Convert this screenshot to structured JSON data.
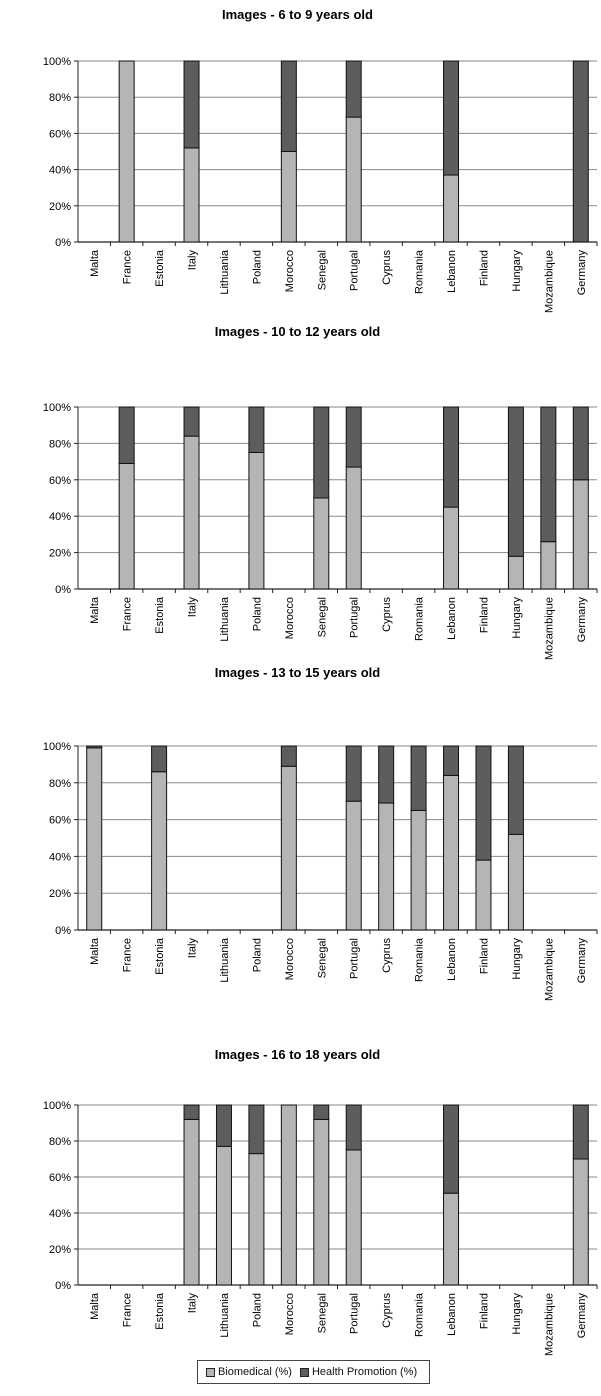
{
  "legend": {
    "items": [
      {
        "label": "Biomedical (%)",
        "color": "#b5b5b5"
      },
      {
        "label": "Health Promotion (%)",
        "color": "#5d5d5d"
      }
    ]
  },
  "chart_data": [
    {
      "type": "bar",
      "stacked": true,
      "title": "Images - 6 to 9 years old",
      "categories": [
        "Malta",
        "France",
        "Estonia",
        "Italy",
        "Lithuania",
        "Poland",
        "Morocco",
        "Senegal",
        "Portugal",
        "Cyprus",
        "Romania",
        "Lebanon",
        "Finland",
        "Hungary",
        "Mozambique",
        "Germany"
      ],
      "y_ticks": [
        "0%",
        "20%",
        "40%",
        "60%",
        "80%",
        "100%"
      ],
      "ylim": [
        0,
        100
      ],
      "grid": true,
      "series": [
        {
          "name": "Biomedical (%)",
          "values": [
            0,
            100,
            0,
            52,
            0,
            0,
            50,
            0,
            69,
            0,
            0,
            37,
            0,
            0,
            0,
            0
          ]
        },
        {
          "name": "Health Promotion (%)",
          "values": [
            0,
            0,
            0,
            48,
            0,
            0,
            50,
            0,
            31,
            0,
            0,
            63,
            0,
            0,
            0,
            100
          ]
        }
      ]
    },
    {
      "type": "bar",
      "stacked": true,
      "title": "Images - 10 to 12 years old",
      "categories": [
        "Malta",
        "France",
        "Estonia",
        "Italy",
        "Lithuania",
        "Poland",
        "Morocco",
        "Senegal",
        "Portugal",
        "Cyprus",
        "Romania",
        "Lebanon",
        "Finland",
        "Hungary",
        "Mozambique",
        "Germany"
      ],
      "y_ticks": [
        "0%",
        "20%",
        "40%",
        "60%",
        "80%",
        "100%"
      ],
      "ylim": [
        0,
        100
      ],
      "grid": true,
      "series": [
        {
          "name": "Biomedical (%)",
          "values": [
            0,
            69,
            0,
            84,
            0,
            75,
            0,
            50,
            67,
            0,
            0,
            45,
            0,
            18,
            26,
            60
          ]
        },
        {
          "name": "Health Promotion (%)",
          "values": [
            0,
            31,
            0,
            16,
            0,
            25,
            0,
            50,
            33,
            0,
            0,
            55,
            0,
            82,
            74,
            40
          ]
        }
      ]
    },
    {
      "type": "bar",
      "stacked": true,
      "title": "Images - 13 to 15 years old",
      "categories": [
        "Malta",
        "France",
        "Estonia",
        "Italy",
        "Lithuania",
        "Poland",
        "Morocco",
        "Senegal",
        "Portugal",
        "Cyprus",
        "Romania",
        "Lebanon",
        "Finland",
        "Hungary",
        "Mozambique",
        "Germany"
      ],
      "y_ticks": [
        "0%",
        "20%",
        "40%",
        "60%",
        "80%",
        "100%"
      ],
      "ylim": [
        0,
        100
      ],
      "grid": true,
      "series": [
        {
          "name": "Biomedical (%)",
          "values": [
            99,
            0,
            86,
            0,
            0,
            0,
            89,
            0,
            70,
            69,
            65,
            84,
            38,
            52,
            0,
            0
          ]
        },
        {
          "name": "Health Promotion (%)",
          "values": [
            1,
            0,
            14,
            0,
            0,
            0,
            11,
            0,
            30,
            31,
            35,
            16,
            62,
            48,
            0,
            0
          ]
        }
      ]
    },
    {
      "type": "bar",
      "stacked": true,
      "title": "Images - 16 to 18 years old",
      "categories": [
        "Malta",
        "France",
        "Estonia",
        "Italy",
        "Lithuania",
        "Poland",
        "Morocco",
        "Senegal",
        "Portugal",
        "Cyprus",
        "Romania",
        "Lebanon",
        "Finland",
        "Hungary",
        "Mozambique",
        "Germany"
      ],
      "y_ticks": [
        "0%",
        "20%",
        "40%",
        "60%",
        "80%",
        "100%"
      ],
      "ylim": [
        0,
        100
      ],
      "grid": true,
      "series": [
        {
          "name": "Biomedical (%)",
          "values": [
            0,
            0,
            0,
            92,
            77,
            73,
            100,
            92,
            75,
            0,
            0,
            51,
            0,
            0,
            0,
            70
          ]
        },
        {
          "name": "Health Promotion (%)",
          "values": [
            0,
            0,
            0,
            8,
            23,
            27,
            0,
            8,
            25,
            0,
            0,
            49,
            0,
            0,
            0,
            30
          ]
        }
      ]
    }
  ]
}
